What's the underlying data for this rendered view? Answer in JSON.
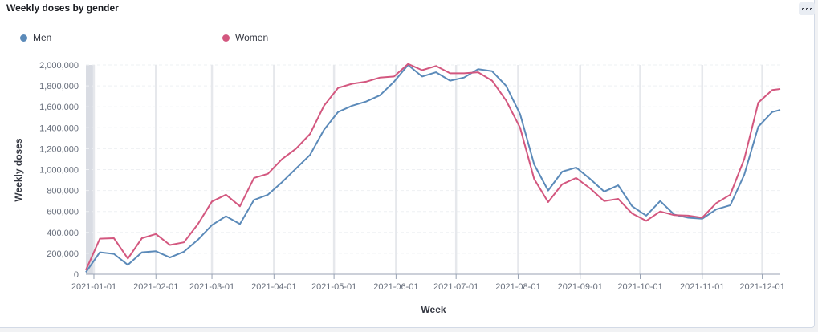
{
  "panel": {
    "title": "Weekly doses by gender",
    "options_icon": "ellipsis-icon"
  },
  "legend": [
    {
      "label": "Men",
      "color": "#5b8ab9"
    },
    {
      "label": "Women",
      "color": "#d3577f"
    }
  ],
  "chart_data": {
    "type": "line",
    "xlabel": "Week",
    "ylabel": "Weekly doses",
    "x_tick_labels": [
      "2021-01-01",
      "2021-02-01",
      "2021-03-01",
      "2021-04-01",
      "2021-05-01",
      "2021-06-01",
      "2021-07-01",
      "2021-08-01",
      "2021-09-01",
      "2021-10-01",
      "2021-11-01",
      "2021-12-01"
    ],
    "y_tick_labels": [
      "0",
      "200,000",
      "400,000",
      "600,000",
      "800,000",
      "1,000,000",
      "1,200,000",
      "1,400,000",
      "1,600,000",
      "1,800,000",
      "2,000,000"
    ],
    "ylim": [
      0,
      2000000
    ],
    "xlim": [
      "2020-12-28",
      "2021-12-10"
    ],
    "grid": true,
    "legend_position": "top-left",
    "x": [
      "2020-12-28",
      "2021-01-04",
      "2021-01-11",
      "2021-01-18",
      "2021-01-25",
      "2021-02-01",
      "2021-02-08",
      "2021-02-15",
      "2021-02-22",
      "2021-03-01",
      "2021-03-08",
      "2021-03-15",
      "2021-03-22",
      "2021-03-29",
      "2021-04-05",
      "2021-04-12",
      "2021-04-19",
      "2021-04-26",
      "2021-05-03",
      "2021-05-10",
      "2021-05-17",
      "2021-05-24",
      "2021-05-31",
      "2021-06-07",
      "2021-06-14",
      "2021-06-21",
      "2021-06-28",
      "2021-07-05",
      "2021-07-12",
      "2021-07-19",
      "2021-07-26",
      "2021-08-02",
      "2021-08-09",
      "2021-08-16",
      "2021-08-23",
      "2021-08-30",
      "2021-09-06",
      "2021-09-13",
      "2021-09-20",
      "2021-09-27",
      "2021-10-04",
      "2021-10-11",
      "2021-10-18",
      "2021-10-25",
      "2021-11-01",
      "2021-11-08",
      "2021-11-15",
      "2021-11-22",
      "2021-11-29",
      "2021-12-06",
      "2021-12-13"
    ],
    "series": [
      {
        "name": "Men",
        "color": "#5b8ab9",
        "values": [
          20000,
          210000,
          195000,
          90000,
          210000,
          220000,
          160000,
          215000,
          330000,
          470000,
          555000,
          480000,
          710000,
          760000,
          880000,
          1010000,
          1140000,
          1380000,
          1550000,
          1610000,
          1650000,
          1710000,
          1840000,
          2000000,
          1890000,
          1930000,
          1850000,
          1880000,
          1960000,
          1940000,
          1800000,
          1530000,
          1050000,
          800000,
          980000,
          1020000,
          910000,
          790000,
          850000,
          650000,
          560000,
          700000,
          570000,
          540000,
          530000,
          620000,
          660000,
          950000,
          1410000,
          1550000,
          1570000
        ]
      },
      {
        "name": "Women",
        "color": "#d3577f",
        "values": [
          40000,
          340000,
          345000,
          150000,
          345000,
          385000,
          280000,
          305000,
          480000,
          695000,
          760000,
          650000,
          920000,
          960000,
          1100000,
          1200000,
          1340000,
          1610000,
          1780000,
          1820000,
          1840000,
          1880000,
          1890000,
          2010000,
          1950000,
          1990000,
          1920000,
          1920000,
          1930000,
          1850000,
          1660000,
          1400000,
          910000,
          690000,
          860000,
          920000,
          820000,
          700000,
          720000,
          580000,
          510000,
          600000,
          565000,
          560000,
          540000,
          680000,
          760000,
          1100000,
          1640000,
          1760000,
          1770000
        ]
      }
    ]
  }
}
